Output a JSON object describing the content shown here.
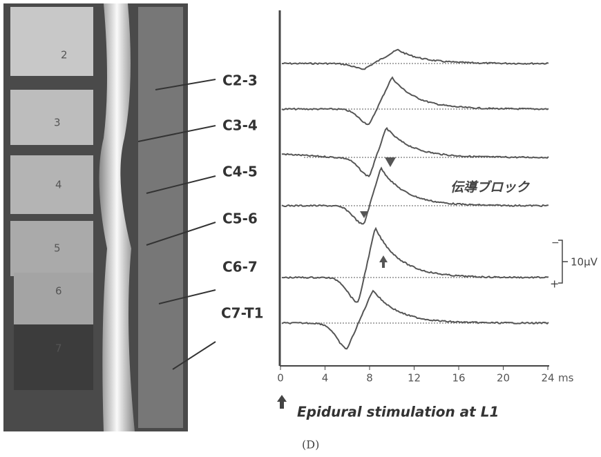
{
  "image": {
    "vertebra_labels": [
      "2",
      "3",
      "4",
      "5",
      "6",
      "7"
    ]
  },
  "levels": [
    "C2-3",
    "C3-4",
    "C4-5",
    "C5-6",
    "C6-7",
    "C7-T1"
  ],
  "axis": {
    "lim": [
      0,
      24
    ],
    "ticks": [
      0,
      4,
      8,
      12,
      16,
      20,
      24
    ],
    "unit": "ms"
  },
  "annotations": {
    "block": "伝導ブロック",
    "scale": "10μV",
    "minus": "−",
    "plus": "+",
    "stimulus": "Epidural stimulation at L1"
  },
  "caption": "(D)"
}
